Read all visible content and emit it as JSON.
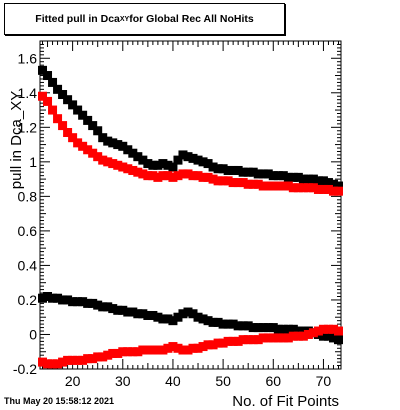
{
  "title": {
    "prefix": "Fitted pull in Dca",
    "subscript": "XY",
    "suffix": " for Global Rec All NoHits"
  },
  "timestamp": "Thu May 20 15:58:12 2021",
  "chart_data": {
    "type": "scatter",
    "title": "Fitted pull in Dca_XY for Global Rec All NoHits",
    "xlabel": "No. of Fit Points",
    "ylabel": "pull in Dca_XY",
    "xlim": [
      13.5,
      73.5
    ],
    "ylim": [
      -0.2,
      1.7
    ],
    "x_ticks": [
      20,
      30,
      40,
      50,
      60,
      70
    ],
    "x_tick_labels": [
      "20",
      "30",
      "40",
      "50",
      "60",
      "70"
    ],
    "y_ticks": [
      -0.2,
      0,
      0.2,
      0.4,
      0.6,
      0.8,
      1,
      1.2,
      1.4,
      1.6
    ],
    "y_tick_labels": [
      "-0.2",
      "0",
      "0.2",
      "0.4",
      "0.6",
      "0.8",
      "1",
      "1.2",
      "1.4",
      "1.6"
    ],
    "grid": false,
    "series": [
      {
        "color": "#000000",
        "marker": "square",
        "points": [
          [
            14,
            1.53
          ],
          [
            15,
            1.5
          ],
          [
            16,
            1.46
          ],
          [
            17,
            1.42
          ],
          [
            18,
            1.39
          ],
          [
            19,
            1.36
          ],
          [
            20,
            1.33
          ],
          [
            21,
            1.3
          ],
          [
            22,
            1.27
          ],
          [
            23,
            1.24
          ],
          [
            24,
            1.21
          ],
          [
            25,
            1.18
          ],
          [
            26,
            1.14
          ],
          [
            27,
            1.12
          ],
          [
            28,
            1.11
          ],
          [
            29,
            1.1
          ],
          [
            30,
            1.09
          ],
          [
            31,
            1.07
          ],
          [
            32,
            1.05
          ],
          [
            33,
            1.03
          ],
          [
            34,
            1.01
          ],
          [
            35,
            0.99
          ],
          [
            36,
            0.98
          ],
          [
            37,
            0.98
          ],
          [
            38,
            0.99
          ],
          [
            39,
            0.98
          ],
          [
            40,
            0.97
          ],
          [
            41,
            1.01
          ],
          [
            42,
            1.04
          ],
          [
            43,
            1.03
          ],
          [
            44,
            1.02
          ],
          [
            45,
            1.01
          ],
          [
            46,
            1.0
          ],
          [
            47,
            0.99
          ],
          [
            48,
            0.97
          ],
          [
            49,
            0.96
          ],
          [
            50,
            0.96
          ],
          [
            51,
            0.95
          ],
          [
            52,
            0.95
          ],
          [
            53,
            0.95
          ],
          [
            54,
            0.94
          ],
          [
            55,
            0.94
          ],
          [
            56,
            0.94
          ],
          [
            57,
            0.93
          ],
          [
            58,
            0.93
          ],
          [
            59,
            0.93
          ],
          [
            60,
            0.92
          ],
          [
            61,
            0.92
          ],
          [
            62,
            0.92
          ],
          [
            63,
            0.91
          ],
          [
            64,
            0.91
          ],
          [
            65,
            0.91
          ],
          [
            66,
            0.9
          ],
          [
            67,
            0.9
          ],
          [
            68,
            0.9
          ],
          [
            69,
            0.89
          ],
          [
            70,
            0.89
          ],
          [
            71,
            0.88
          ],
          [
            72,
            0.87
          ],
          [
            73,
            0.86
          ]
        ]
      },
      {
        "color": "#ff0000",
        "marker": "square",
        "points": [
          [
            14,
            1.38
          ],
          [
            15,
            1.35
          ],
          [
            16,
            1.3
          ],
          [
            17,
            1.25
          ],
          [
            18,
            1.21
          ],
          [
            19,
            1.17
          ],
          [
            20,
            1.14
          ],
          [
            21,
            1.11
          ],
          [
            22,
            1.09
          ],
          [
            23,
            1.07
          ],
          [
            24,
            1.05
          ],
          [
            25,
            1.03
          ],
          [
            26,
            1.01
          ],
          [
            27,
            1.0
          ],
          [
            28,
            0.99
          ],
          [
            29,
            0.98
          ],
          [
            30,
            0.97
          ],
          [
            31,
            0.96
          ],
          [
            32,
            0.95
          ],
          [
            33,
            0.94
          ],
          [
            34,
            0.93
          ],
          [
            35,
            0.92
          ],
          [
            36,
            0.92
          ],
          [
            37,
            0.91
          ],
          [
            38,
            0.92
          ],
          [
            39,
            0.92
          ],
          [
            40,
            0.91
          ],
          [
            41,
            0.92
          ],
          [
            42,
            0.93
          ],
          [
            43,
            0.93
          ],
          [
            44,
            0.92
          ],
          [
            45,
            0.92
          ],
          [
            46,
            0.91
          ],
          [
            47,
            0.91
          ],
          [
            48,
            0.9
          ],
          [
            49,
            0.89
          ],
          [
            50,
            0.89
          ],
          [
            51,
            0.89
          ],
          [
            52,
            0.88
          ],
          [
            53,
            0.88
          ],
          [
            54,
            0.88
          ],
          [
            55,
            0.87
          ],
          [
            56,
            0.87
          ],
          [
            57,
            0.87
          ],
          [
            58,
            0.86
          ],
          [
            59,
            0.86
          ],
          [
            60,
            0.86
          ],
          [
            61,
            0.86
          ],
          [
            62,
            0.86
          ],
          [
            63,
            0.86
          ],
          [
            64,
            0.85
          ],
          [
            65,
            0.85
          ],
          [
            66,
            0.85
          ],
          [
            67,
            0.85
          ],
          [
            68,
            0.85
          ],
          [
            69,
            0.84
          ],
          [
            70,
            0.84
          ],
          [
            71,
            0.84
          ],
          [
            72,
            0.83
          ],
          [
            73,
            0.83
          ]
        ]
      },
      {
        "color": "#000000",
        "marker": "square",
        "points": [
          [
            14,
            0.21
          ],
          [
            15,
            0.22
          ],
          [
            16,
            0.21
          ],
          [
            17,
            0.21
          ],
          [
            18,
            0.2
          ],
          [
            19,
            0.2
          ],
          [
            20,
            0.19
          ],
          [
            21,
            0.19
          ],
          [
            22,
            0.19
          ],
          [
            23,
            0.18
          ],
          [
            24,
            0.18
          ],
          [
            25,
            0.17
          ],
          [
            26,
            0.16
          ],
          [
            27,
            0.16
          ],
          [
            28,
            0.15
          ],
          [
            29,
            0.14
          ],
          [
            30,
            0.14
          ],
          [
            31,
            0.13
          ],
          [
            32,
            0.13
          ],
          [
            33,
            0.12
          ],
          [
            34,
            0.12
          ],
          [
            35,
            0.11
          ],
          [
            36,
            0.11
          ],
          [
            37,
            0.1
          ],
          [
            38,
            0.09
          ],
          [
            39,
            0.09
          ],
          [
            40,
            0.08
          ],
          [
            41,
            0.1
          ],
          [
            42,
            0.12
          ],
          [
            43,
            0.13
          ],
          [
            44,
            0.12
          ],
          [
            45,
            0.1
          ],
          [
            46,
            0.09
          ],
          [
            47,
            0.08
          ],
          [
            48,
            0.07
          ],
          [
            49,
            0.07
          ],
          [
            50,
            0.06
          ],
          [
            51,
            0.06
          ],
          [
            52,
            0.06
          ],
          [
            53,
            0.05
          ],
          [
            54,
            0.05
          ],
          [
            55,
            0.05
          ],
          [
            56,
            0.04
          ],
          [
            57,
            0.04
          ],
          [
            58,
            0.04
          ],
          [
            59,
            0.04
          ],
          [
            60,
            0.04
          ],
          [
            61,
            0.03
          ],
          [
            62,
            0.03
          ],
          [
            63,
            0.03
          ],
          [
            64,
            0.03
          ],
          [
            65,
            0.02
          ],
          [
            66,
            0.02
          ],
          [
            67,
            0.02
          ],
          [
            68,
            0.01
          ],
          [
            69,
            0.0
          ],
          [
            70,
            -0.01
          ],
          [
            71,
            -0.01
          ],
          [
            72,
            -0.02
          ],
          [
            73,
            -0.03
          ]
        ]
      },
      {
        "color": "#ff0000",
        "marker": "square",
        "points": [
          [
            14,
            -0.16
          ],
          [
            15,
            -0.17
          ],
          [
            16,
            -0.17
          ],
          [
            17,
            -0.17
          ],
          [
            18,
            -0.16
          ],
          [
            19,
            -0.15
          ],
          [
            20,
            -0.15
          ],
          [
            21,
            -0.15
          ],
          [
            22,
            -0.15
          ],
          [
            23,
            -0.14
          ],
          [
            24,
            -0.14
          ],
          [
            25,
            -0.13
          ],
          [
            26,
            -0.13
          ],
          [
            27,
            -0.12
          ],
          [
            28,
            -0.11
          ],
          [
            29,
            -0.11
          ],
          [
            30,
            -0.1
          ],
          [
            31,
            -0.1
          ],
          [
            32,
            -0.1
          ],
          [
            33,
            -0.1
          ],
          [
            34,
            -0.09
          ],
          [
            35,
            -0.09
          ],
          [
            36,
            -0.09
          ],
          [
            37,
            -0.09
          ],
          [
            38,
            -0.09
          ],
          [
            39,
            -0.08
          ],
          [
            40,
            -0.07
          ],
          [
            41,
            -0.08
          ],
          [
            42,
            -0.09
          ],
          [
            43,
            -0.09
          ],
          [
            44,
            -0.08
          ],
          [
            45,
            -0.08
          ],
          [
            46,
            -0.07
          ],
          [
            47,
            -0.06
          ],
          [
            48,
            -0.06
          ],
          [
            49,
            -0.05
          ],
          [
            50,
            -0.05
          ],
          [
            51,
            -0.04
          ],
          [
            52,
            -0.04
          ],
          [
            53,
            -0.04
          ],
          [
            54,
            -0.03
          ],
          [
            55,
            -0.03
          ],
          [
            56,
            -0.03
          ],
          [
            57,
            -0.03
          ],
          [
            58,
            -0.02
          ],
          [
            59,
            -0.02
          ],
          [
            60,
            -0.02
          ],
          [
            61,
            -0.02
          ],
          [
            62,
            -0.02
          ],
          [
            63,
            -0.02
          ],
          [
            64,
            -0.01
          ],
          [
            65,
            -0.01
          ],
          [
            66,
            -0.01
          ],
          [
            67,
            0.0
          ],
          [
            68,
            0.01
          ],
          [
            69,
            0.02
          ],
          [
            70,
            0.03
          ],
          [
            71,
            0.03
          ],
          [
            72,
            0.03
          ],
          [
            73,
            0.02
          ]
        ]
      }
    ]
  }
}
